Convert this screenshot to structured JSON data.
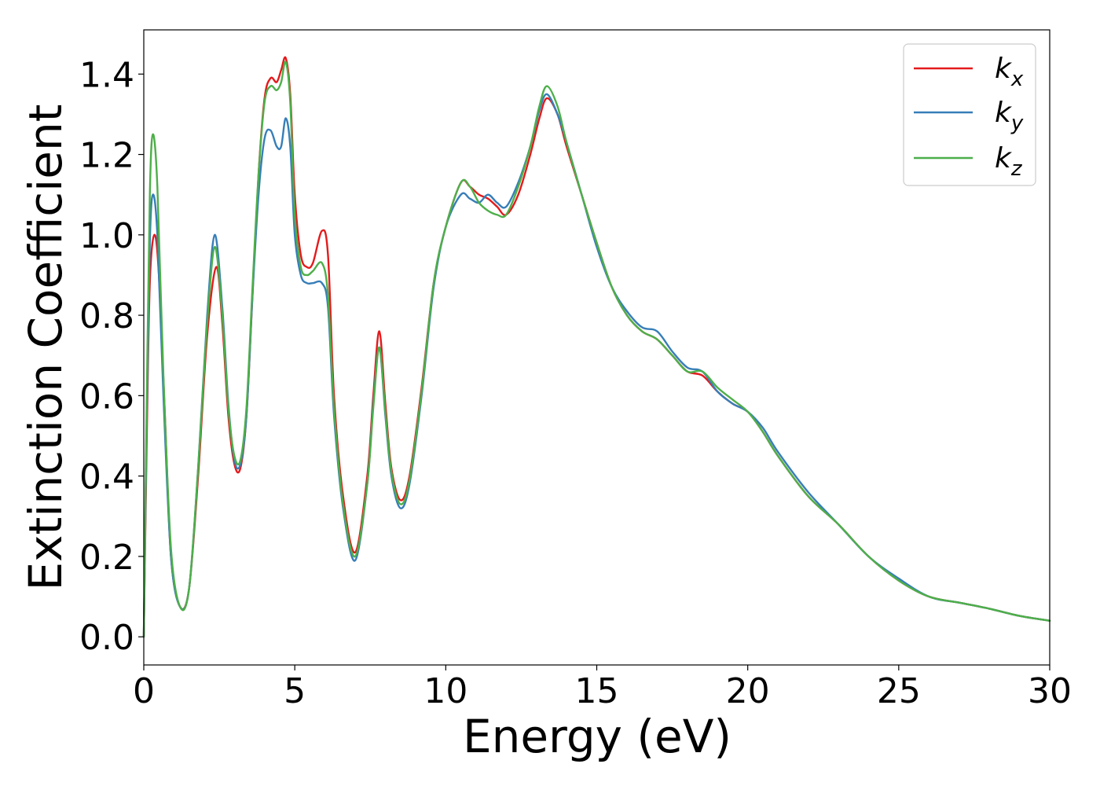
{
  "chart_data": {
    "type": "line",
    "title": "",
    "xlabel": "Energy (eV)",
    "ylabel": "Extinction Coefficient",
    "xlim": [
      0,
      30
    ],
    "ylim": [
      -0.07,
      1.51
    ],
    "xticks": [
      0,
      5,
      10,
      15,
      20,
      25,
      30
    ],
    "xtick_labels": [
      "0",
      "5",
      "10",
      "15",
      "20",
      "25",
      "30"
    ],
    "yticks": [
      0.0,
      0.2,
      0.4,
      0.6,
      0.8,
      1.0,
      1.2,
      1.4
    ],
    "ytick_labels": [
      "0.0",
      "0.2",
      "0.4",
      "0.6",
      "0.8",
      "1.0",
      "1.2",
      "1.4"
    ],
    "grid": false,
    "legend_position": "top-right",
    "legend": {
      "entries": [
        {
          "base": "k",
          "sub": "x"
        },
        {
          "base": "k",
          "sub": "y"
        },
        {
          "base": "k",
          "sub": "z"
        }
      ]
    },
    "series": [
      {
        "name": "kx",
        "color": "#e41a1c",
        "x": [
          0,
          0.1,
          0.2,
          0.35,
          0.5,
          0.7,
          0.9,
          1.2,
          1.5,
          1.8,
          2.1,
          2.4,
          2.6,
          2.8,
          3.0,
          3.2,
          3.4,
          3.6,
          3.8,
          4.0,
          4.2,
          4.4,
          4.55,
          4.7,
          4.85,
          5.0,
          5.2,
          5.4,
          5.6,
          5.9,
          6.1,
          6.3,
          6.6,
          7.0,
          7.4,
          7.6,
          7.8,
          8.0,
          8.2,
          8.5,
          8.8,
          9.2,
          9.6,
          10.0,
          10.5,
          10.8,
          11.1,
          11.4,
          11.7,
          12.0,
          12.4,
          12.8,
          13.1,
          13.35,
          13.7,
          14.0,
          14.5,
          15.0,
          15.5,
          16.0,
          16.5,
          17.0,
          17.5,
          18.0,
          18.5,
          19.0,
          19.5,
          20.0,
          20.5,
          21.0,
          22.0,
          23.0,
          24.0,
          25.0,
          26.0,
          27.0,
          28.0,
          29.0,
          30.0
        ],
        "y": [
          0.0,
          0.5,
          0.88,
          1.0,
          0.9,
          0.55,
          0.2,
          0.075,
          0.12,
          0.4,
          0.75,
          0.92,
          0.78,
          0.55,
          0.43,
          0.42,
          0.55,
          0.85,
          1.15,
          1.34,
          1.39,
          1.38,
          1.41,
          1.44,
          1.35,
          1.1,
          0.95,
          0.92,
          0.93,
          1.01,
          0.95,
          0.6,
          0.35,
          0.21,
          0.4,
          0.6,
          0.76,
          0.58,
          0.42,
          0.34,
          0.4,
          0.62,
          0.88,
          1.02,
          1.13,
          1.12,
          1.1,
          1.09,
          1.07,
          1.05,
          1.1,
          1.2,
          1.29,
          1.34,
          1.3,
          1.22,
          1.1,
          0.98,
          0.87,
          0.8,
          0.76,
          0.74,
          0.7,
          0.66,
          0.65,
          0.61,
          0.58,
          0.56,
          0.51,
          0.45,
          0.35,
          0.28,
          0.2,
          0.14,
          0.1,
          0.085,
          0.07,
          0.052,
          0.04
        ]
      },
      {
        "name": "ky",
        "color": "#377eb8",
        "x": [
          0,
          0.1,
          0.2,
          0.3,
          0.45,
          0.65,
          0.9,
          1.2,
          1.5,
          1.8,
          2.1,
          2.35,
          2.6,
          2.8,
          3.0,
          3.2,
          3.4,
          3.6,
          3.8,
          4.0,
          4.2,
          4.4,
          4.55,
          4.7,
          4.85,
          5.0,
          5.2,
          5.4,
          5.6,
          5.9,
          6.1,
          6.3,
          6.6,
          7.0,
          7.4,
          7.6,
          7.8,
          8.0,
          8.2,
          8.5,
          8.8,
          9.2,
          9.6,
          10.0,
          10.5,
          10.8,
          11.1,
          11.4,
          11.7,
          12.0,
          12.4,
          12.8,
          13.1,
          13.35,
          13.7,
          14.0,
          14.5,
          15.0,
          15.5,
          16.0,
          16.5,
          17.0,
          17.5,
          18.0,
          18.5,
          19.0,
          19.5,
          20.0,
          20.5,
          21.0,
          22.0,
          23.0,
          24.0,
          25.0,
          26.0,
          27.0,
          28.0,
          29.0,
          30.0
        ],
        "y": [
          0.0,
          0.55,
          0.98,
          1.1,
          1.0,
          0.6,
          0.2,
          0.075,
          0.12,
          0.42,
          0.8,
          1.0,
          0.82,
          0.58,
          0.44,
          0.43,
          0.55,
          0.85,
          1.1,
          1.24,
          1.26,
          1.22,
          1.22,
          1.29,
          1.22,
          1.0,
          0.9,
          0.88,
          0.88,
          0.88,
          0.82,
          0.55,
          0.32,
          0.19,
          0.38,
          0.58,
          0.72,
          0.55,
          0.4,
          0.32,
          0.38,
          0.6,
          0.87,
          1.02,
          1.1,
          1.09,
          1.08,
          1.1,
          1.08,
          1.07,
          1.13,
          1.22,
          1.31,
          1.35,
          1.3,
          1.23,
          1.1,
          0.97,
          0.87,
          0.81,
          0.77,
          0.76,
          0.71,
          0.67,
          0.66,
          0.61,
          0.58,
          0.56,
          0.52,
          0.46,
          0.36,
          0.28,
          0.2,
          0.145,
          0.1,
          0.085,
          0.07,
          0.052,
          0.04
        ]
      },
      {
        "name": "kz",
        "color": "#4daf4a",
        "x": [
          0,
          0.1,
          0.2,
          0.3,
          0.45,
          0.65,
          0.9,
          1.2,
          1.5,
          1.8,
          2.1,
          2.35,
          2.6,
          2.8,
          3.0,
          3.2,
          3.4,
          3.6,
          3.8,
          4.0,
          4.2,
          4.4,
          4.55,
          4.7,
          4.85,
          5.0,
          5.2,
          5.4,
          5.6,
          5.9,
          6.1,
          6.3,
          6.6,
          7.0,
          7.4,
          7.6,
          7.8,
          8.0,
          8.2,
          8.5,
          8.8,
          9.2,
          9.6,
          10.0,
          10.5,
          10.8,
          11.1,
          11.4,
          11.7,
          12.0,
          12.4,
          12.8,
          13.1,
          13.35,
          13.7,
          14.0,
          14.5,
          15.0,
          15.5,
          16.0,
          16.5,
          17.0,
          17.5,
          18.0,
          18.5,
          19.0,
          19.5,
          20.0,
          20.5,
          21.0,
          22.0,
          23.0,
          24.0,
          25.0,
          26.0,
          27.0,
          28.0,
          29.0,
          30.0
        ],
        "y": [
          0.0,
          0.6,
          1.1,
          1.25,
          1.12,
          0.65,
          0.22,
          0.075,
          0.12,
          0.42,
          0.78,
          0.97,
          0.8,
          0.57,
          0.45,
          0.44,
          0.57,
          0.87,
          1.15,
          1.33,
          1.37,
          1.36,
          1.38,
          1.43,
          1.33,
          1.05,
          0.92,
          0.9,
          0.91,
          0.93,
          0.85,
          0.57,
          0.33,
          0.2,
          0.38,
          0.57,
          0.72,
          0.56,
          0.41,
          0.33,
          0.39,
          0.61,
          0.88,
          1.02,
          1.13,
          1.12,
          1.08,
          1.06,
          1.05,
          1.05,
          1.12,
          1.22,
          1.32,
          1.37,
          1.32,
          1.23,
          1.1,
          0.98,
          0.87,
          0.8,
          0.76,
          0.74,
          0.7,
          0.66,
          0.66,
          0.62,
          0.59,
          0.56,
          0.51,
          0.45,
          0.35,
          0.28,
          0.2,
          0.14,
          0.1,
          0.085,
          0.07,
          0.052,
          0.04
        ]
      }
    ]
  }
}
